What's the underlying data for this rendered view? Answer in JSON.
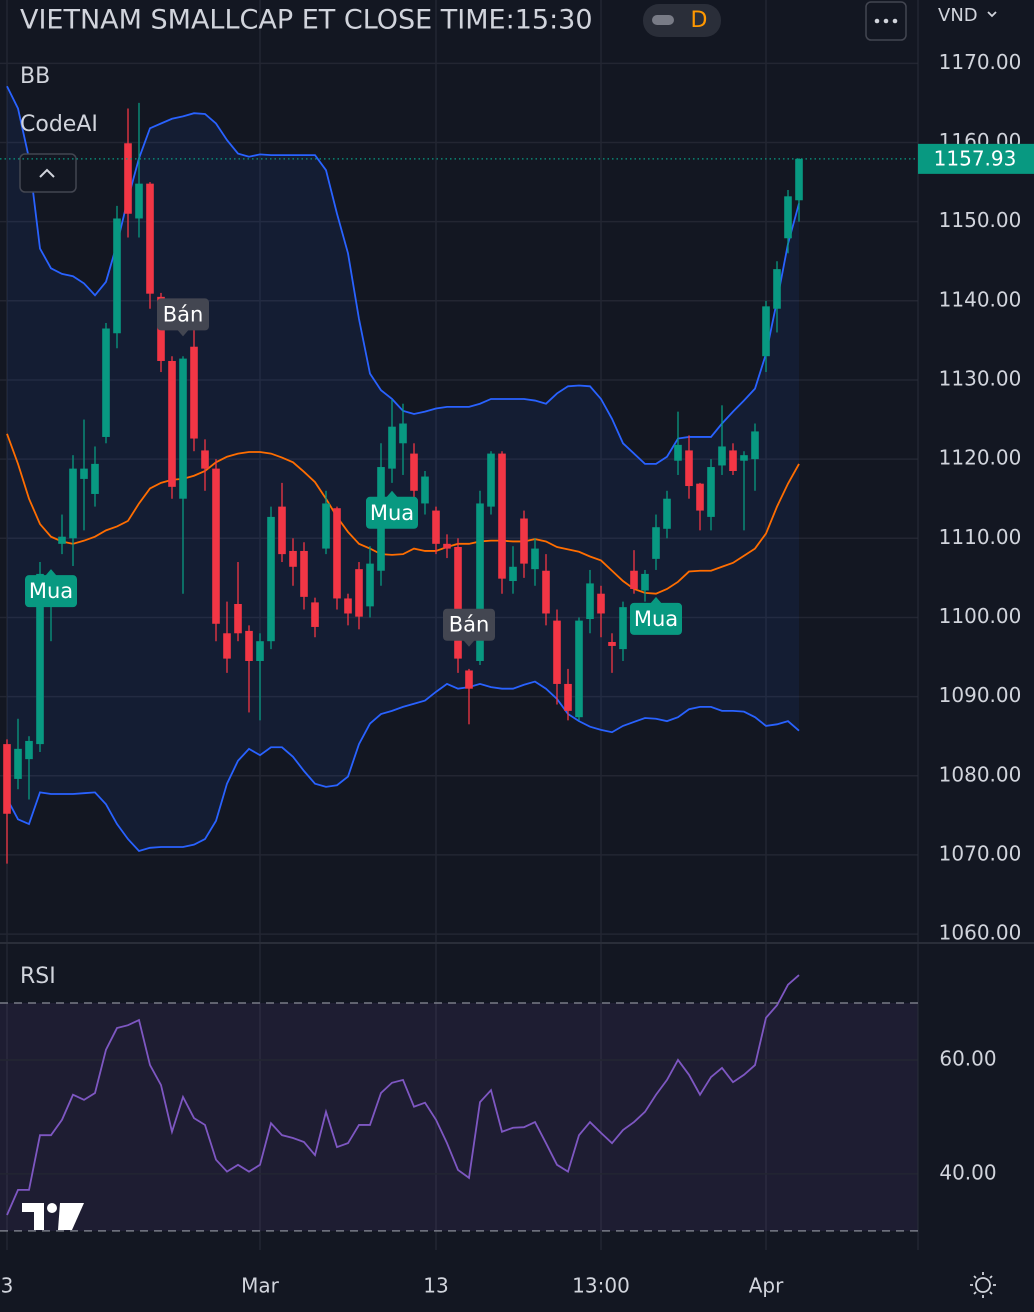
{
  "header": {
    "title": "VIETNAM SMALLCAP ET CLOSE TIME:15:30",
    "interval": "D",
    "currency": "VND"
  },
  "chart_data": [
    {
      "type": "candlestick",
      "indicator_labels": [
        "BB",
        "CodeAI"
      ],
      "categories": [
        "3",
        null,
        null,
        null,
        null,
        null,
        null,
        null,
        null,
        null,
        null,
        null,
        null,
        null,
        null,
        null,
        null,
        null,
        null,
        null,
        null,
        null,
        null,
        "Mar",
        null,
        null,
        null,
        null,
        null,
        null,
        null,
        null,
        null,
        null,
        null,
        null,
        null,
        null,
        null,
        "13",
        null,
        null,
        null,
        null,
        null,
        null,
        null,
        null,
        null,
        null,
        null,
        null,
        null,
        null,
        "13:00",
        null,
        null,
        null,
        null,
        null,
        null,
        null,
        null,
        null,
        null,
        null,
        null,
        null,
        null,
        "Apr",
        null,
        null,
        null
      ],
      "open": [
        1084.0,
        1079.6,
        1082.1,
        1084.0,
        1102.3,
        1109.3,
        1110.0,
        1117.5,
        1115.6,
        1122.8,
        1135.9,
        1159.9,
        1150.4,
        1154.8,
        1140.5,
        1132.4,
        1115.0,
        1134.2,
        1121.1,
        1118.8,
        1098.0,
        1101.7,
        1098.3,
        1094.5,
        1097.0,
        1114.0,
        1108.4,
        1108.4,
        1101.9,
        1108.7,
        1113.8,
        1102.4,
        1106.1,
        1101.4,
        1105.9,
        1118.8,
        1122.0,
        1120.7,
        1114.4,
        1113.5,
        1109.3,
        1108.9,
        1093.3,
        1094.5,
        1114.0,
        1120.7,
        1104.6,
        1112.5,
        1106.1,
        1105.9,
        1099.6,
        1091.6,
        1087.4,
        1099.8,
        1103.0,
        1096.9,
        1096.0,
        1105.9,
        1103.4,
        1107.4,
        1111.2,
        1119.8,
        1121.1,
        1116.9,
        1112.7,
        1119.2,
        1121.1,
        1119.8,
        1120.0,
        1133.0,
        1139.0,
        1147.9,
        1152.7
      ],
      "high": [
        1084.6,
        1087.2,
        1085.0,
        1107.0,
        1106.0,
        1113.0,
        1120.5,
        1125.0,
        1121.6,
        1137.2,
        1152.0,
        1164.3,
        1165.0,
        1155.0,
        1141.0,
        1133.0,
        1133.0,
        1137.0,
        1122.5,
        1120.0,
        1102.0,
        1107.0,
        1099.0,
        1098.0,
        1114.0,
        1117.0,
        1110.0,
        1109.5,
        1102.5,
        1116.0,
        1114.0,
        1103.0,
        1107.0,
        1109.0,
        1122.0,
        1127.5,
        1127.0,
        1122.0,
        1118.5,
        1114.0,
        1110.5,
        1110.0,
        1093.5,
        1116.0,
        1121.0,
        1121.0,
        1109.0,
        1113.5,
        1110.0,
        1108.0,
        1101.0,
        1093.5,
        1100.0,
        1106.0,
        1104.0,
        1098.0,
        1102.0,
        1108.5,
        1106.0,
        1113.0,
        1116.0,
        1126.0,
        1123.0,
        1117.0,
        1120.0,
        1126.8,
        1122.0,
        1121.0,
        1124.5,
        1140.0,
        1145.0,
        1154.0,
        1158.0
      ],
      "low": [
        1068.9,
        1078.3,
        1077.0,
        1083.0,
        1097.0,
        1108.0,
        1106.5,
        1111.0,
        1114.0,
        1122.0,
        1134.0,
        1148.0,
        1148.0,
        1139.0,
        1131.0,
        1115.0,
        1103.0,
        1121.0,
        1116.0,
        1097.0,
        1093.0,
        1097.0,
        1088.0,
        1087.0,
        1096.0,
        1107.0,
        1104.0,
        1101.0,
        1097.5,
        1108.0,
        1101.0,
        1099.0,
        1098.5,
        1100.0,
        1104.0,
        1117.0,
        1118.0,
        1115.0,
        1113.0,
        1108.0,
        1107.5,
        1093.0,
        1086.5,
        1094.0,
        1113.0,
        1103.0,
        1103.0,
        1105.0,
        1104.0,
        1099.0,
        1089.0,
        1087.0,
        1087.0,
        1098.0,
        1097.5,
        1093.0,
        1094.5,
        1103.0,
        1102.0,
        1106.0,
        1110.0,
        1118.0,
        1115.0,
        1111.0,
        1111.0,
        1118.0,
        1118.0,
        1111.0,
        1116.0,
        1131.0,
        1136.0,
        1146.0,
        1150.0
      ],
      "close": [
        1075.2,
        1083.4,
        1084.4,
        1105.5,
        1103.6,
        1110.2,
        1118.8,
        1118.8,
        1119.4,
        1136.5,
        1150.4,
        1151.0,
        1154.8,
        1140.9,
        1132.4,
        1116.5,
        1132.7,
        1122.6,
        1118.8,
        1099.2,
        1094.8,
        1098.0,
        1094.5,
        1097.0,
        1112.7,
        1108.0,
        1106.4,
        1102.6,
        1098.8,
        1114.4,
        1102.4,
        1100.5,
        1100.1,
        1106.8,
        1119.0,
        1124.1,
        1124.5,
        1116.0,
        1117.8,
        1109.3,
        1108.7,
        1094.8,
        1091.0,
        1114.4,
        1120.7,
        1104.9,
        1106.4,
        1106.8,
        1108.7,
        1100.5,
        1091.6,
        1088.2,
        1099.6,
        1104.3,
        1100.5,
        1096.4,
        1101.3,
        1103.6,
        1105.5,
        1111.4,
        1115.0,
        1121.8,
        1116.6,
        1113.5,
        1119.0,
        1121.6,
        1118.5,
        1120.5,
        1123.5,
        1139.3,
        1144.0,
        1153.2,
        1157.93
      ],
      "up_color": "#089981",
      "down_color": "#f23645",
      "overlays": [
        {
          "color": "#2962ff",
          "values": [
            1167.1,
            1164.3,
            1158.0,
            1146.6,
            1144.1,
            1143.4,
            1143.1,
            1142.2,
            1140.7,
            1142.4,
            1147.2,
            1152.9,
            1158.0,
            1161.8,
            1162.4,
            1163.0,
            1163.3,
            1163.7,
            1163.6,
            1162.4,
            1160.3,
            1158.6,
            1158.2,
            1158.5,
            1158.4,
            1158.4,
            1158.4,
            1158.4,
            1158.4,
            1156.5,
            1151.0,
            1146.0,
            1137.7,
            1130.8,
            1128.7,
            1127.6,
            1126.1,
            1125.7,
            1126.0,
            1126.4,
            1126.6,
            1126.6,
            1126.6,
            1127.0,
            1127.6,
            1127.6,
            1127.6,
            1127.6,
            1127.4,
            1127.0,
            1128.3,
            1129.2,
            1129.3,
            1129.2,
            1127.6,
            1125.1,
            1122.0,
            1120.7,
            1119.4,
            1119.4,
            1120.3,
            1122.6,
            1122.8,
            1122.8,
            1122.8,
            1124.5,
            1126.0,
            1127.4,
            1128.9,
            1133.3,
            1140.0,
            1147.2,
            1152.3
          ]
        },
        {
          "color": "#ff6d00",
          "values": [
            1123.2,
            1119.4,
            1115.0,
            1111.8,
            1110.2,
            1109.6,
            1109.3,
            1109.7,
            1110.2,
            1111.0,
            1111.5,
            1112.2,
            1114.4,
            1116.3,
            1117.0,
            1117.4,
            1117.5,
            1117.9,
            1118.5,
            1119.6,
            1120.3,
            1120.7,
            1120.9,
            1120.9,
            1120.7,
            1120.2,
            1119.6,
            1118.4,
            1117.1,
            1115.0,
            1112.7,
            1110.8,
            1109.3,
            1108.7,
            1108.0,
            1107.9,
            1108.0,
            1108.7,
            1108.4,
            1108.4,
            1108.9,
            1109.3,
            1109.3,
            1109.6,
            1109.7,
            1109.7,
            1109.6,
            1109.6,
            1109.9,
            1109.6,
            1108.9,
            1108.6,
            1108.3,
            1107.7,
            1107.2,
            1105.9,
            1104.6,
            1103.6,
            1103.1,
            1103.0,
            1103.6,
            1104.5,
            1105.8,
            1105.9,
            1105.9,
            1106.4,
            1106.9,
            1107.8,
            1108.7,
            1110.6,
            1114.0,
            1116.9,
            1119.4
          ]
        },
        {
          "color": "#2962ff",
          "values": [
            1077.1,
            1074.5,
            1073.9,
            1077.9,
            1077.7,
            1077.7,
            1077.7,
            1077.8,
            1077.9,
            1076.4,
            1073.9,
            1072.0,
            1070.5,
            1070.9,
            1071.0,
            1071.0,
            1071.0,
            1071.3,
            1072.0,
            1074.3,
            1079.0,
            1081.9,
            1083.4,
            1082.6,
            1083.6,
            1083.6,
            1082.4,
            1080.6,
            1079.0,
            1078.6,
            1078.8,
            1079.9,
            1084.0,
            1086.6,
            1087.8,
            1088.2,
            1088.7,
            1089.1,
            1089.5,
            1090.6,
            1091.6,
            1091.0,
            1091.2,
            1091.6,
            1091.2,
            1091.0,
            1091.0,
            1091.5,
            1091.9,
            1091.0,
            1089.7,
            1087.8,
            1086.9,
            1086.2,
            1085.8,
            1085.5,
            1086.3,
            1086.8,
            1087.3,
            1087.2,
            1086.9,
            1087.4,
            1088.4,
            1088.7,
            1088.7,
            1088.2,
            1088.2,
            1088.1,
            1087.4,
            1086.3,
            1086.5,
            1086.9,
            1085.7
          ]
        }
      ],
      "band_fill": "#2962ff",
      "signals": [
        {
          "text": "Mua",
          "index": 4,
          "price": 1106.1,
          "position": "below",
          "color": "#089981"
        },
        {
          "text": "Bán",
          "index": 16,
          "price": 1135.5,
          "position": "above",
          "color": "#434651"
        },
        {
          "text": "Mua",
          "index": 35,
          "price": 1116.0,
          "position": "below",
          "color": "#089981"
        },
        {
          "text": "Bán",
          "index": 42,
          "price": 1096.3,
          "position": "above",
          "color": "#434651"
        },
        {
          "text": "Mua",
          "index": 59,
          "price": 1102.6,
          "position": "below",
          "color": "#089981"
        }
      ],
      "last_price": 1157.93,
      "ylim": [
        1059,
        1178
      ],
      "yticks": [
        {
          "value": 1060,
          "label": "1060.00"
        },
        {
          "value": 1070,
          "label": "1070.00"
        },
        {
          "value": 1080,
          "label": "1080.00"
        },
        {
          "value": 1090,
          "label": "1090.00"
        },
        {
          "value": 1100,
          "label": "1100.00"
        },
        {
          "value": 1110,
          "label": "1110.00"
        },
        {
          "value": 1120,
          "label": "1120.00"
        },
        {
          "value": 1130,
          "label": "1130.00"
        },
        {
          "value": 1140,
          "label": "1140.00"
        },
        {
          "value": 1150,
          "label": "1150.00"
        },
        {
          "value": 1160,
          "label": "1160.00"
        },
        {
          "value": 1170,
          "label": "1170.00"
        }
      ],
      "grid": true
    },
    {
      "type": "line",
      "title": "RSI",
      "color": "#7e57c2",
      "values": [
        32.8,
        37.2,
        37.2,
        46.8,
        46.8,
        49.5,
        53.9,
        53.0,
        54.2,
        61.8,
        65.6,
        66.1,
        67.0,
        59.1,
        55.6,
        47.4,
        53.5,
        49.8,
        48.6,
        42.5,
        40.4,
        41.6,
        40.4,
        41.6,
        48.9,
        46.8,
        46.3,
        45.6,
        43.3,
        50.9,
        44.7,
        45.4,
        48.6,
        48.6,
        54.2,
        56.0,
        56.5,
        51.8,
        52.5,
        49.5,
        45.4,
        40.7,
        39.3,
        52.6,
        54.7,
        47.4,
        48.1,
        48.2,
        49.1,
        45.4,
        41.6,
        40.4,
        46.8,
        49.1,
        47.2,
        45.4,
        47.7,
        49.1,
        50.9,
        53.9,
        56.5,
        60.0,
        57.4,
        53.9,
        57.0,
        58.6,
        56.1,
        57.4,
        59.1,
        67.4,
        69.6,
        73.2,
        74.9
      ],
      "bands": [
        30,
        70
      ],
      "ylim": [
        27,
        80
      ],
      "yticks": [
        {
          "value": 40,
          "label": "40.00"
        },
        {
          "value": 60,
          "label": "60.00"
        }
      ],
      "grid": true
    }
  ]
}
